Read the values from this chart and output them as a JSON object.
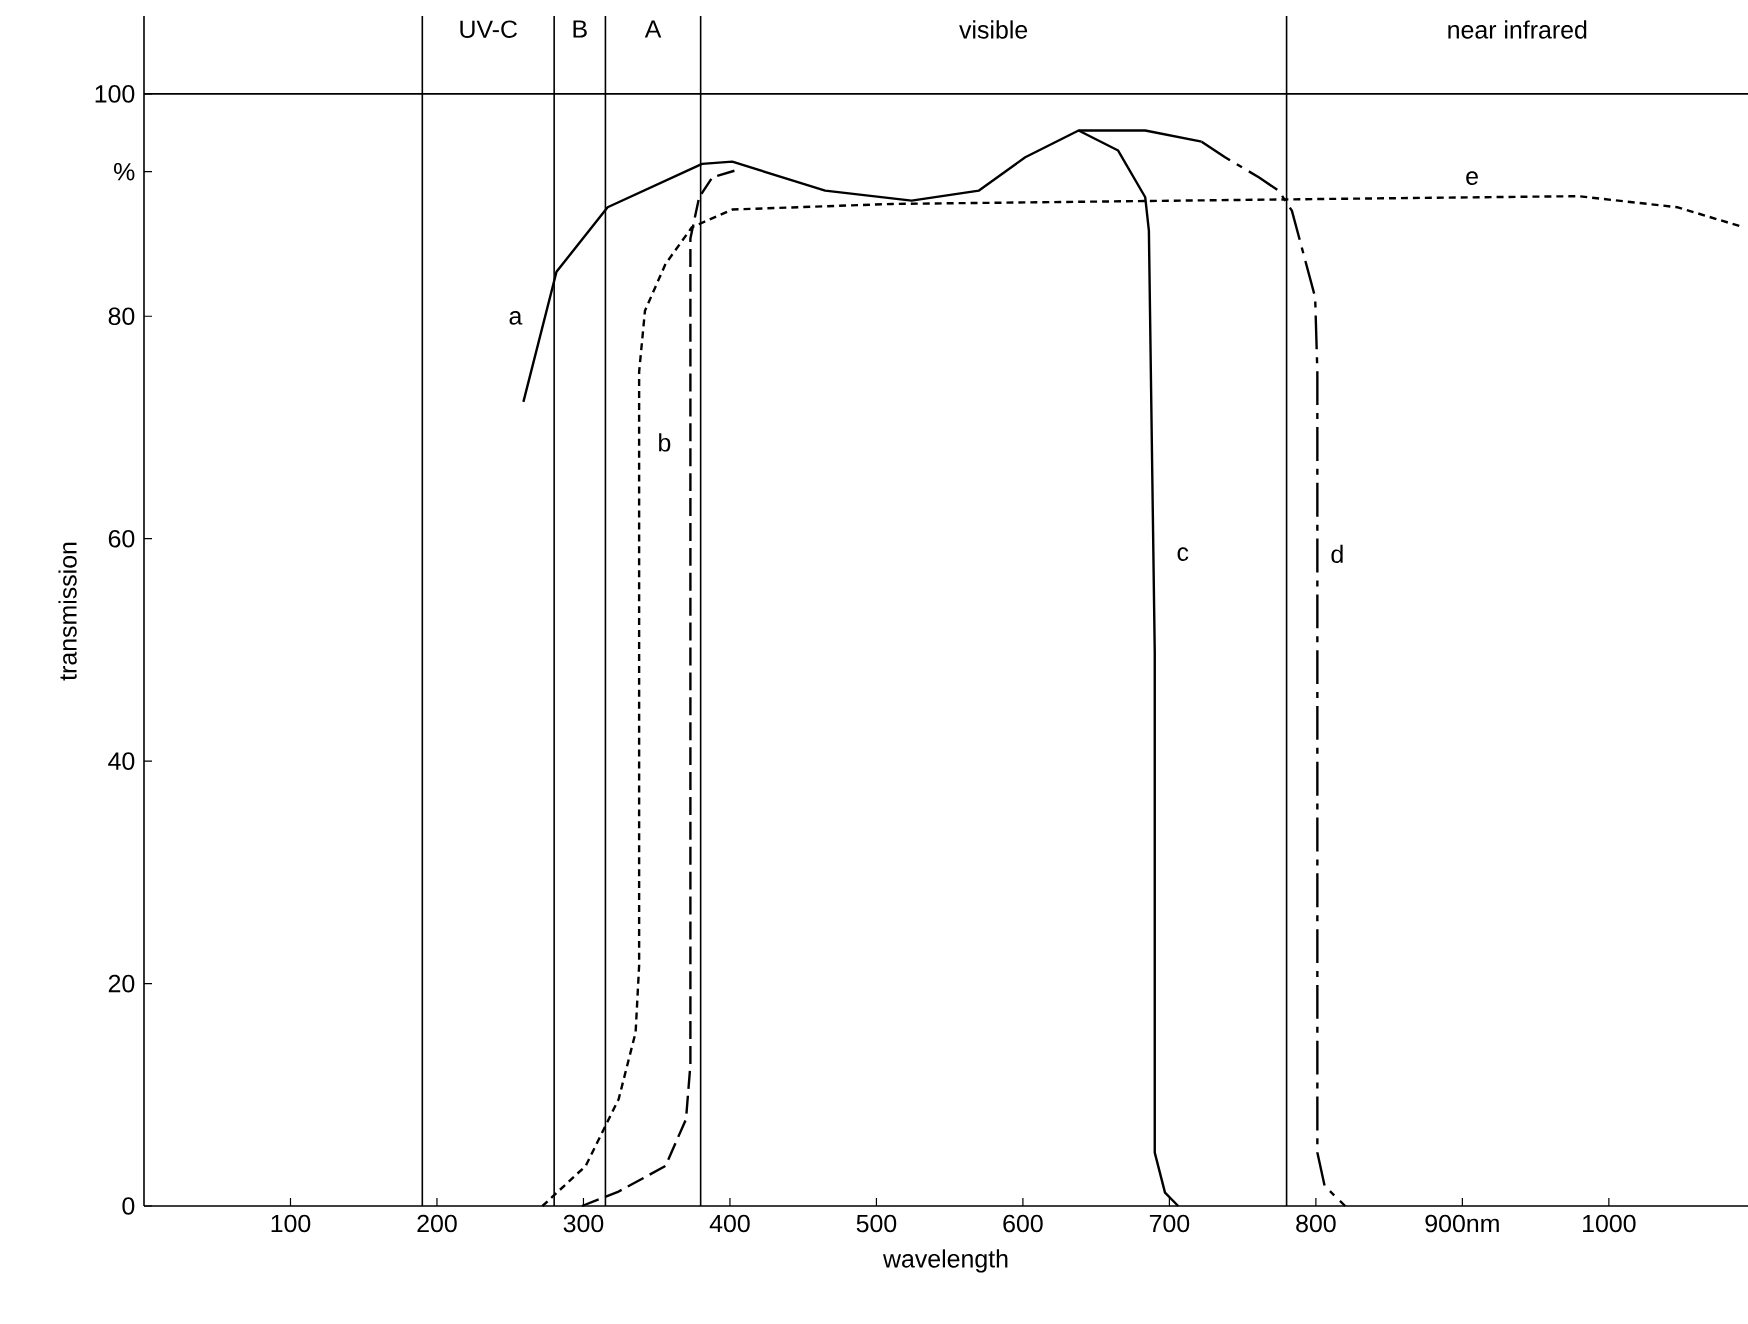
{
  "chart_data": {
    "type": "line",
    "xlabel": "wavelength",
    "ylabel": "transmission",
    "xlim": [
      0,
      1095
    ],
    "ylim": [
      0,
      107
    ],
    "xticks": [
      100,
      200,
      300,
      400,
      500,
      600,
      700,
      800,
      {
        "value": 900,
        "label": "900nm"
      },
      1000
    ],
    "yticks": [
      0,
      20,
      40,
      60,
      80,
      {
        "value": 93,
        "label": "%"
      },
      100
    ],
    "series": [
      {
        "name": "a",
        "color": "#000000",
        "line_style": "solid",
        "x": [
          259,
          281.6,
          316.5,
          381,
          401.6,
          465,
          524,
          570,
          601.6,
          638,
          683.5,
          722
        ],
        "values": [
          72.3,
          84,
          89.8,
          93.7,
          93.9,
          91.3,
          90.4,
          91.3,
          94.3,
          96.7,
          96.7,
          95.7
        ]
      },
      {
        "name": "b",
        "color": "#000000",
        "line_style": "dashed",
        "x": [
          299,
          324,
          356,
          370,
          373,
          373,
          379,
          388,
          406
        ],
        "values": [
          0,
          1.3,
          3.6,
          7.8,
          12.7,
          87,
          90.7,
          92.5,
          93.2
        ]
      },
      {
        "name": "c",
        "color": "#000000",
        "line_style": "solid",
        "x": [
          638,
          665,
          683.5,
          686,
          690,
          690,
          697,
          706
        ],
        "values": [
          96.7,
          94.9,
          90.7,
          87.7,
          49.8,
          4.8,
          1.2,
          0
        ]
      },
      {
        "name": "d",
        "color": "#000000",
        "line_style": "dashdot",
        "x": [
          722,
          738,
          761,
          774.5,
          783.6,
          799.5,
          801,
          801,
          806,
          820
        ],
        "values": [
          95.7,
          94.3,
          92.5,
          91.3,
          89.5,
          81.7,
          75,
          4.8,
          1.8,
          0
        ]
      },
      {
        "name": "e",
        "color": "#000000",
        "line_style": "dotted",
        "x": [
          272,
          301.5,
          324,
          335.6,
          338,
          338,
          342,
          356,
          374,
          401.6,
          511,
          774.5,
          979,
          1047,
          1092
        ],
        "values": [
          0,
          3.6,
          9.6,
          15.6,
          21.6,
          75,
          80.5,
          84.7,
          88,
          89.6,
          90.1,
          90.5,
          90.8,
          89.8,
          88
        ]
      }
    ],
    "ref_lines": [
      {
        "axis": "y",
        "value": 100,
        "color": "#000000"
      },
      {
        "axis": "x",
        "value": 190,
        "color": "#000000"
      },
      {
        "axis": "x",
        "value": 280,
        "color": "#000000"
      },
      {
        "axis": "x",
        "value": 315,
        "color": "#000000"
      },
      {
        "axis": "x",
        "value": 380,
        "color": "#000000"
      },
      {
        "axis": "x",
        "value": 780,
        "color": "#000000"
      }
    ],
    "annotations": [
      "UV-C",
      "B",
      "A",
      "visible",
      "near infrared"
    ]
  }
}
